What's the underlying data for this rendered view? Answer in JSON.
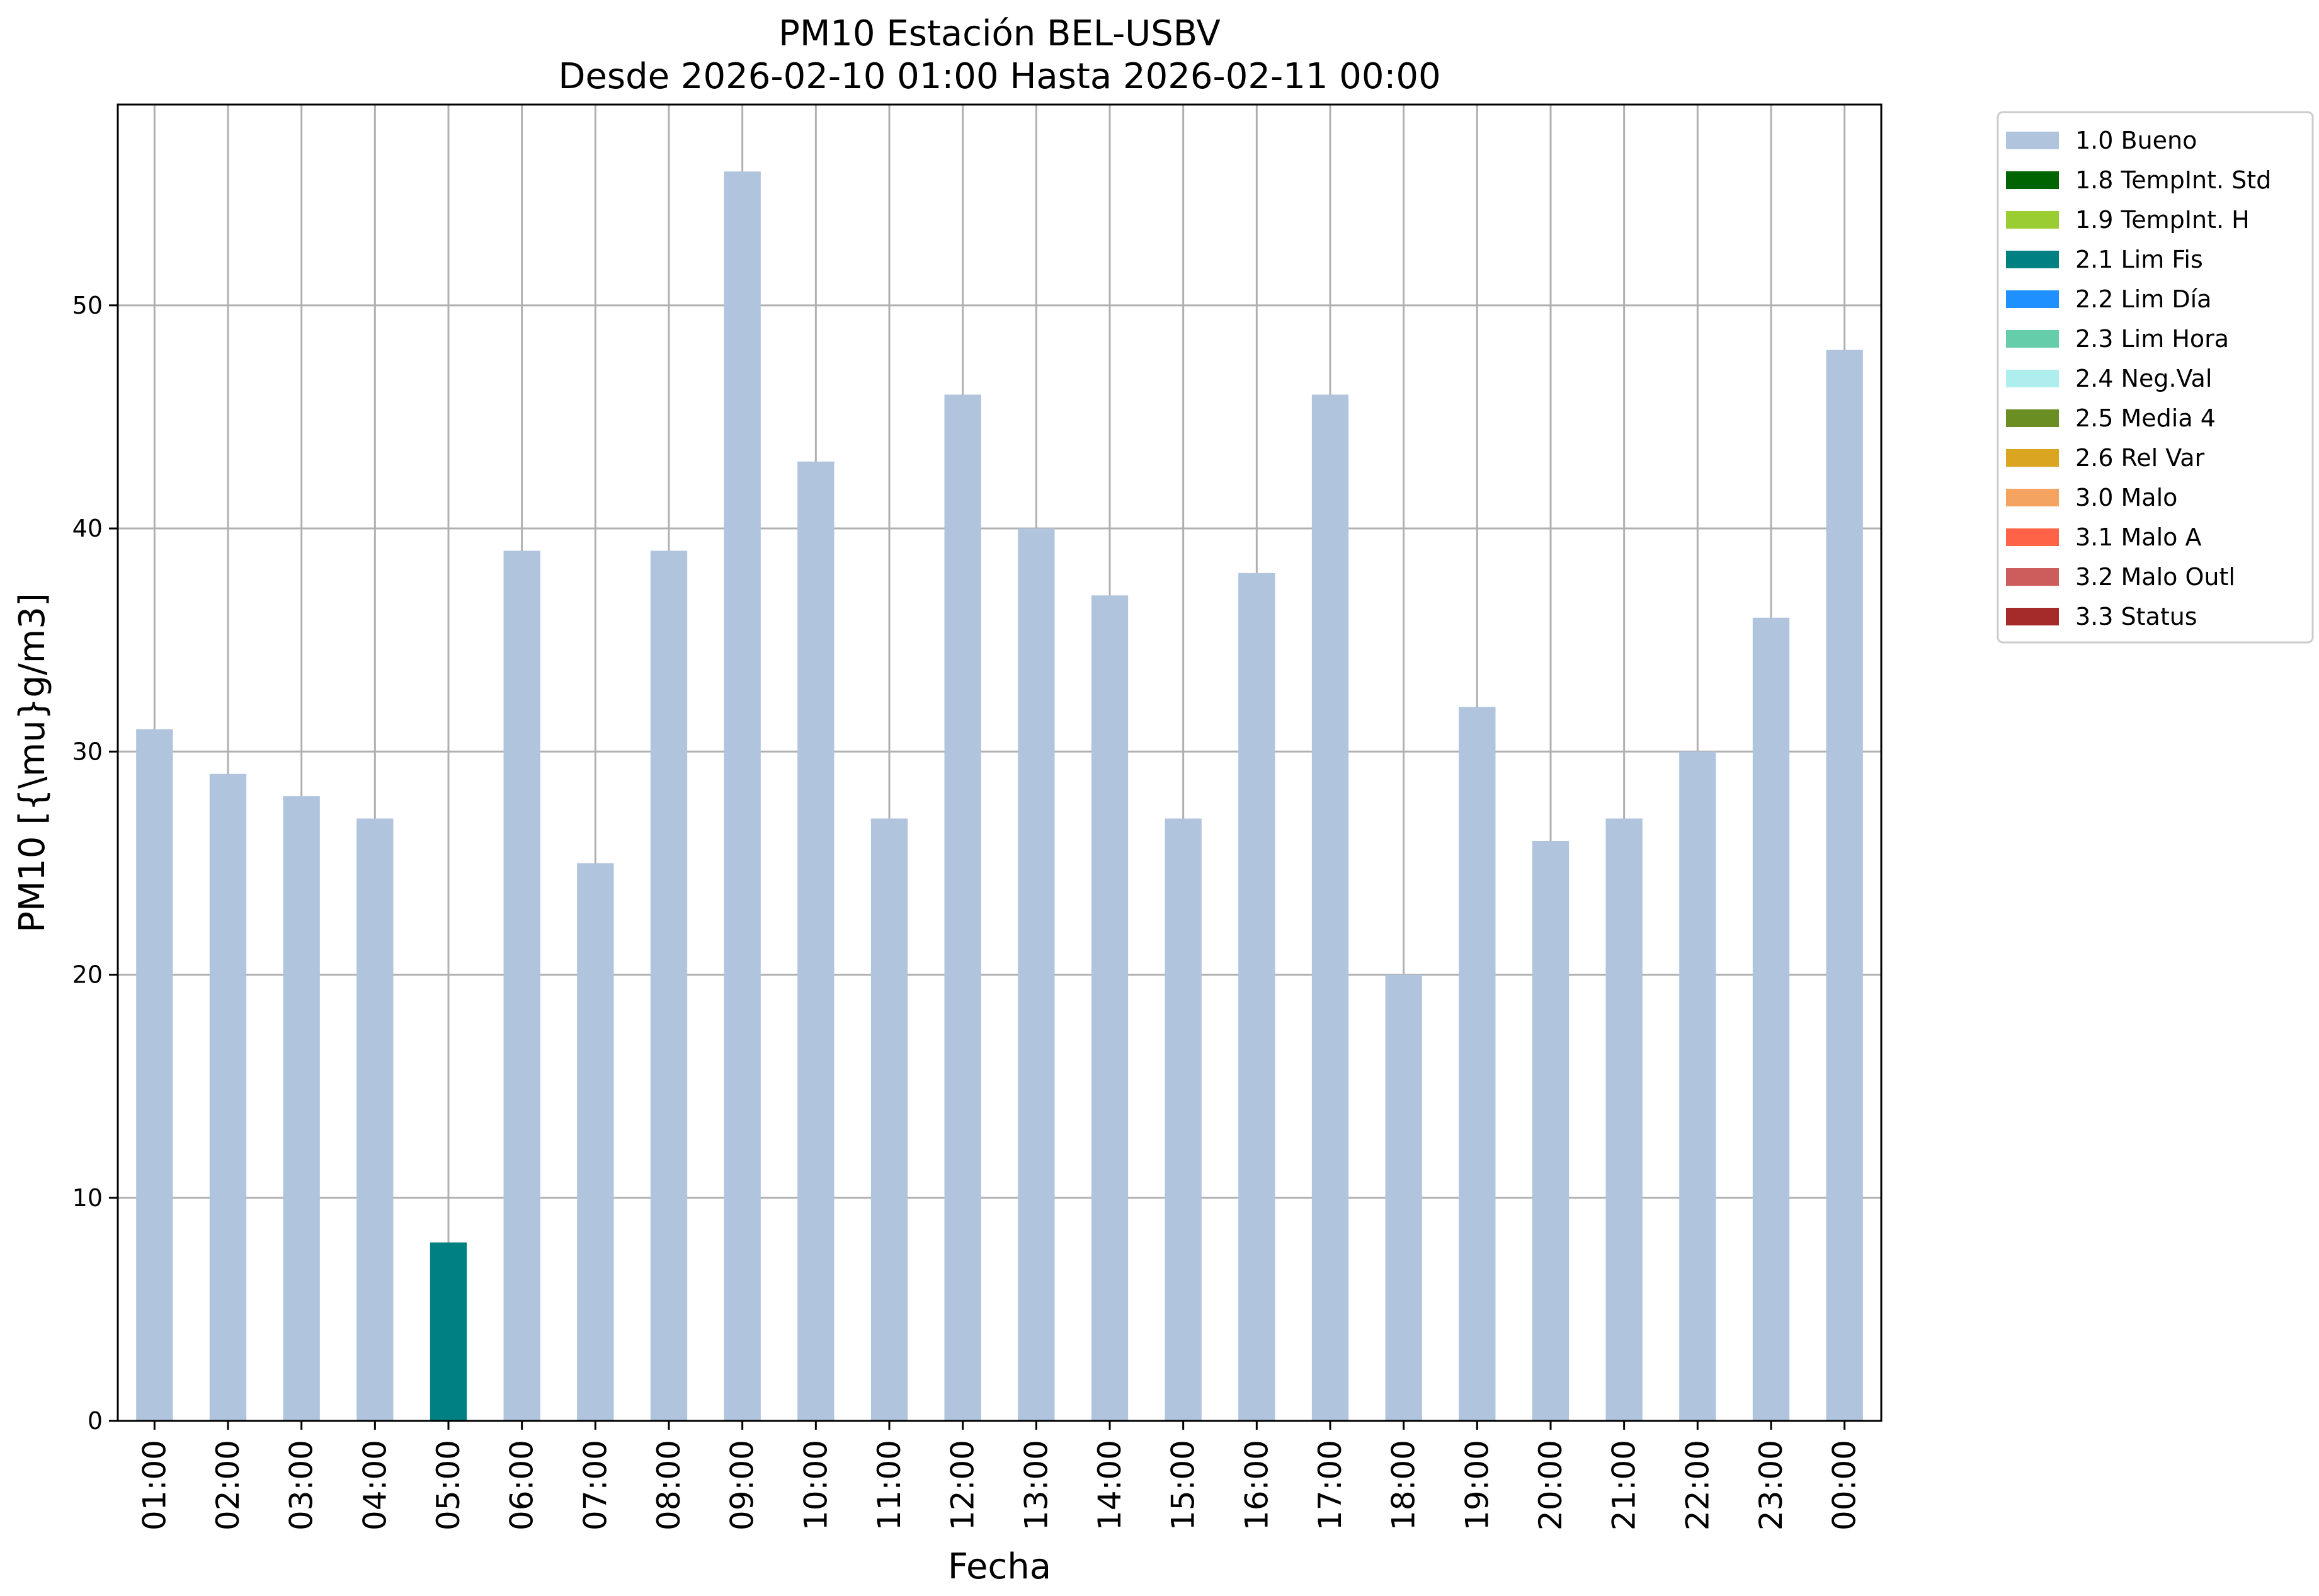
{
  "chart_data": {
    "type": "bar",
    "title": "PM10 Estación BEL-USBV",
    "subtitle": "Desde 2026-02-10 01:00 Hasta 2026-02-11 00:00",
    "xlabel": "Fecha",
    "ylabel": "PM10 [{\\mu}g/m3]",
    "ylim": [
      0,
      59
    ],
    "yticks": [
      0,
      10,
      20,
      30,
      40,
      50
    ],
    "grid": true,
    "legend_position": "outside-top-right",
    "categories": [
      "01:00",
      "02:00",
      "03:00",
      "04:00",
      "05:00",
      "06:00",
      "07:00",
      "08:00",
      "09:00",
      "10:00",
      "11:00",
      "12:00",
      "13:00",
      "14:00",
      "15:00",
      "16:00",
      "17:00",
      "18:00",
      "19:00",
      "20:00",
      "21:00",
      "22:00",
      "23:00",
      "00:00"
    ],
    "values": [
      31,
      29,
      28,
      27,
      8,
      39,
      25,
      39,
      56,
      43,
      27,
      46,
      40,
      37,
      27,
      38,
      46,
      20,
      32,
      26,
      27,
      30,
      36,
      48
    ],
    "flags": [
      "1.0 Bueno",
      "1.0 Bueno",
      "1.0 Bueno",
      "1.0 Bueno",
      "2.1 Lim Fis",
      "1.0 Bueno",
      "1.0 Bueno",
      "1.0 Bueno",
      "1.0 Bueno",
      "1.0 Bueno",
      "1.0 Bueno",
      "1.0 Bueno",
      "1.0 Bueno",
      "1.0 Bueno",
      "1.0 Bueno",
      "1.0 Bueno",
      "1.0 Bueno",
      "1.0 Bueno",
      "1.0 Bueno",
      "1.0 Bueno",
      "1.0 Bueno",
      "1.0 Bueno",
      "1.0 Bueno",
      "1.0 Bueno"
    ],
    "legend": [
      {
        "label": "1.0 Bueno",
        "color": "#b0c4de"
      },
      {
        "label": "1.8 TempInt. Std",
        "color": "#006400"
      },
      {
        "label": "1.9 TempInt. H",
        "color": "#9acd32"
      },
      {
        "label": "2.1 Lim Fis",
        "color": "#008080"
      },
      {
        "label": "2.2 Lim Día",
        "color": "#1e90ff"
      },
      {
        "label": "2.3 Lim Hora",
        "color": "#66cdaa"
      },
      {
        "label": "2.4 Neg.Val",
        "color": "#afeeee"
      },
      {
        "label": "2.5 Media 4",
        "color": "#6b8e23"
      },
      {
        "label": "2.6 Rel Var",
        "color": "#daa520"
      },
      {
        "label": "3.0 Malo",
        "color": "#f4a460"
      },
      {
        "label": "3.1 Malo A",
        "color": "#ff6347"
      },
      {
        "label": "3.2 Malo Outl",
        "color": "#cd5c5c"
      },
      {
        "label": "3.3 Status",
        "color": "#a52a2a"
      }
    ]
  }
}
